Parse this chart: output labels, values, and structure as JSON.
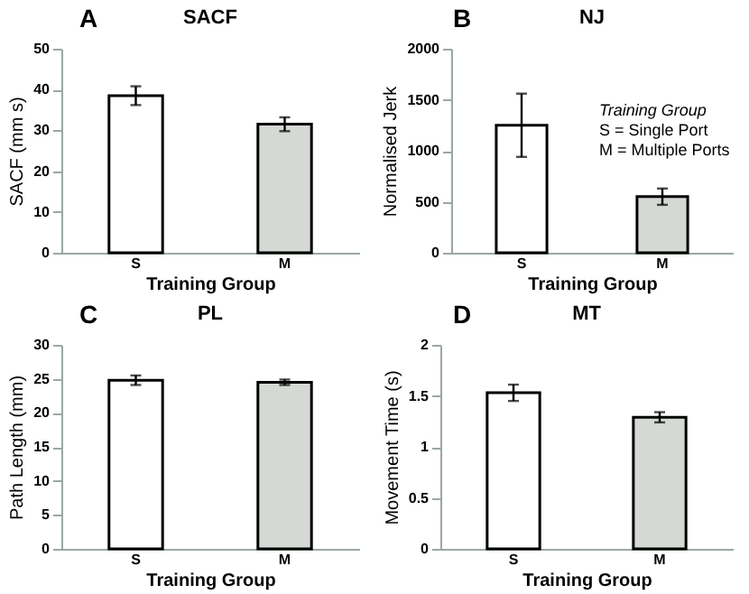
{
  "chart_data": [
    {
      "type": "bar",
      "title": "SACF",
      "xlabel": "Training Group",
      "ylabel": "SACF (mm s)",
      "annotations": [
        "A"
      ],
      "categories": [
        "S",
        "M"
      ],
      "values": [
        38.5,
        31.5
      ],
      "errors": [
        2.3,
        1.7
      ],
      "colors": [
        "#ffffff",
        "#d4d9d4"
      ],
      "ylim": [
        0,
        50
      ],
      "yticks": [
        0,
        10,
        20,
        30,
        40,
        50
      ],
      "grid": false,
      "legend": false
    },
    {
      "type": "bar",
      "title": "NJ",
      "xlabel": "Training Group",
      "ylabel": "Normalised Jerk",
      "annotations": [
        "B",
        "Training Group",
        "S = Single Port",
        "M = Multiple Ports"
      ],
      "categories": [
        "S",
        "M"
      ],
      "values": [
        1250,
        550
      ],
      "errors": [
        310,
        80
      ],
      "colors": [
        "#ffffff",
        "#d4d9d4"
      ],
      "ylim": [
        0,
        2000
      ],
      "yticks": [
        0,
        500,
        1000,
        1500,
        2000
      ],
      "grid": false,
      "legend": false
    },
    {
      "type": "bar",
      "title": "PL",
      "xlabel": "Training Group",
      "ylabel": "Path Length (mm)",
      "annotations": [
        "C"
      ],
      "categories": [
        "S",
        "M"
      ],
      "values": [
        24.8,
        24.5
      ],
      "errors": [
        0.7,
        0.4
      ],
      "colors": [
        "#ffffff",
        "#d4d9d4"
      ],
      "ylim": [
        0,
        30
      ],
      "yticks": [
        0,
        5,
        10,
        15,
        20,
        25,
        30
      ],
      "grid": false,
      "legend": false
    },
    {
      "type": "bar",
      "title": "MT",
      "xlabel": "Training Group",
      "ylabel": "Movement Time (s)",
      "annotations": [
        "D"
      ],
      "categories": [
        "S",
        "M"
      ],
      "values": [
        1.53,
        1.29
      ],
      "errors": [
        0.08,
        0.05
      ],
      "colors": [
        "#ffffff",
        "#d4d9d4"
      ],
      "ylim": [
        0,
        2
      ],
      "yticks": [
        0,
        0.5,
        1,
        1.5,
        2
      ],
      "grid": false,
      "legend": false
    }
  ]
}
